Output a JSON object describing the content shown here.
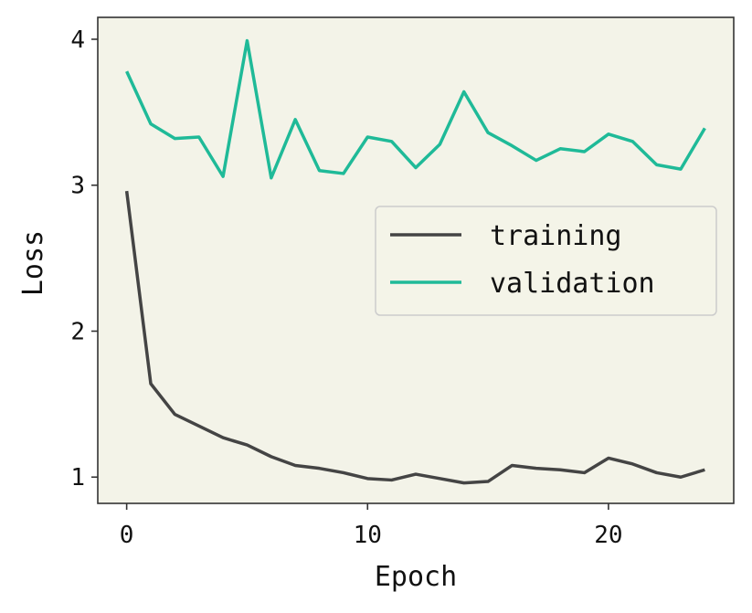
{
  "chart_data": {
    "type": "line",
    "title": "",
    "xlabel": "Epoch",
    "ylabel": "Loss",
    "xlim": [
      -1.2,
      25.2
    ],
    "ylim": [
      0.82,
      4.15
    ],
    "xticks": [
      0,
      10,
      20
    ],
    "xtick_labels": [
      "0",
      "10",
      "20"
    ],
    "yticks": [
      1,
      2,
      3,
      4
    ],
    "ytick_labels": [
      "1",
      "2",
      "3",
      "4"
    ],
    "grid": false,
    "legend_position": "center-right",
    "background_color": "#f3f3e8",
    "x": [
      0,
      1,
      2,
      3,
      4,
      5,
      6,
      7,
      8,
      9,
      10,
      11,
      12,
      13,
      14,
      15,
      16,
      17,
      18,
      19,
      20,
      21,
      22,
      23,
      24
    ],
    "series": [
      {
        "name": "training",
        "color": "#444444",
        "values": [
          2.96,
          1.64,
          1.43,
          1.35,
          1.27,
          1.22,
          1.14,
          1.08,
          1.06,
          1.03,
          0.99,
          0.98,
          1.02,
          0.99,
          0.96,
          0.97,
          1.08,
          1.06,
          1.05,
          1.03,
          1.13,
          1.09,
          1.03,
          1.0,
          1.05
        ]
      },
      {
        "name": "validation",
        "color": "#1fba98",
        "values": [
          3.78,
          3.42,
          3.32,
          3.33,
          3.06,
          3.99,
          3.05,
          3.45,
          3.1,
          3.08,
          3.33,
          3.3,
          3.12,
          3.28,
          3.64,
          3.36,
          3.27,
          3.17,
          3.25,
          3.23,
          3.35,
          3.3,
          3.14,
          3.11,
          3.39
        ]
      }
    ]
  }
}
